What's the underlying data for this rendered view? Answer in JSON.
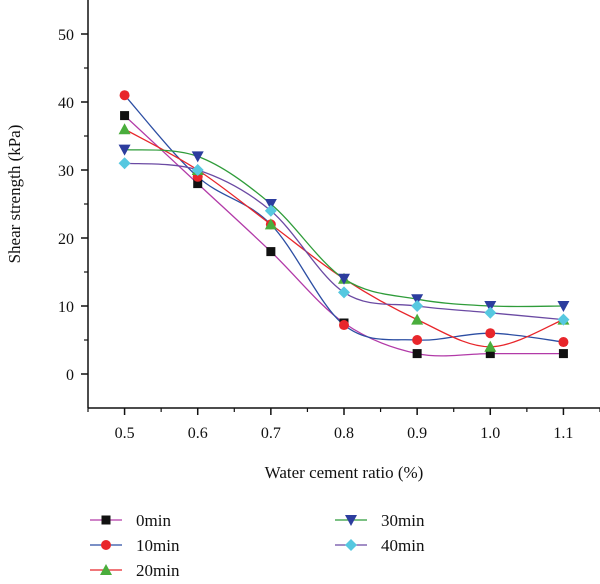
{
  "chart_data": {
    "type": "line",
    "title": "",
    "xlabel": "Water cement ratio (%)",
    "ylabel": "Shear strength (kPa)",
    "x": [
      0.5,
      0.6,
      0.7,
      0.8,
      0.9,
      1.0,
      1.1
    ],
    "x_tick_labels": [
      "0.5",
      "0.6",
      "0.7",
      "0.8",
      "0.9",
      "1.0",
      "1.1"
    ],
    "xlim": [
      0.45,
      1.15
    ],
    "ylim": [
      -5,
      55
    ],
    "y_ticks": [
      0,
      10,
      20,
      30,
      40,
      50
    ],
    "y_tick_labels": [
      "0",
      "10",
      "20",
      "30",
      "40",
      "50"
    ],
    "grid": false,
    "legend_position": "bottom",
    "series": [
      {
        "name": "0min",
        "values": [
          38,
          28,
          18,
          7.5,
          3,
          3,
          3
        ],
        "marker": "square",
        "marker_color": "#111111",
        "line_color": "#b23aa8"
      },
      {
        "name": "10min",
        "values": [
          41,
          29,
          22,
          7.2,
          5,
          6,
          4.7
        ],
        "marker": "circle",
        "marker_color": "#e8262b",
        "line_color": "#2c4ea3"
      },
      {
        "name": "20min",
        "values": [
          36,
          30,
          22,
          14,
          8,
          4,
          8
        ],
        "marker": "triangle-up",
        "marker_color": "#4aad3c",
        "line_color": "#e8262b"
      },
      {
        "name": "30min",
        "values": [
          33,
          32,
          25,
          14,
          11,
          10,
          10
        ],
        "marker": "triangle-down",
        "marker_color": "#2c3d9e",
        "line_color": "#2f9c3a"
      },
      {
        "name": "40min",
        "values": [
          31,
          30,
          24,
          12,
          10,
          9,
          8
        ],
        "marker": "diamond",
        "marker_color": "#56c8e0",
        "line_color": "#6b4aa3"
      }
    ]
  }
}
